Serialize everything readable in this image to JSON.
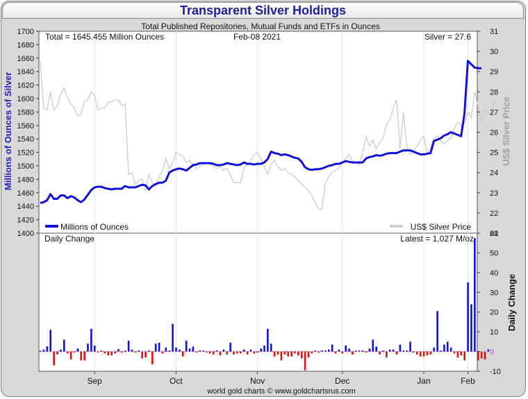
{
  "title": "Transparent Silver Holdings",
  "subtitle": "Total Published Repositories, Mutual Funds and ETFs in Ounces",
  "total_label": "Total = 1645.455 Million Ounces",
  "date_label": "Feb-08  2021",
  "silver_label": "Silver = 27.6",
  "daily_label": "Daily Change",
  "latest_label": "Latest = 1.027 M/oz",
  "credit": "world gold charts © www.goldchartsrus.com",
  "colors": {
    "holdings": "#1010dd",
    "price": "#c8c8c8",
    "up": "#1010dd",
    "down": "#dd1010"
  },
  "chart_data": [
    {
      "type": "line",
      "ylabel": "Millions of Ounces of Silver",
      "y2label": "US$ Silver Price",
      "ylim": [
        1400,
        1700
      ],
      "y2lim": [
        21,
        31
      ],
      "yticks": [
        1400,
        1420,
        1440,
        1460,
        1480,
        1500,
        1520,
        1540,
        1560,
        1580,
        1600,
        1620,
        1640,
        1660,
        1680,
        1700
      ],
      "y2ticks": [
        21,
        22,
        23,
        24,
        25,
        26,
        27,
        28,
        29,
        30,
        31
      ],
      "xticks": [
        "Sep",
        "Oct",
        "Nov",
        "Dec",
        "Jan",
        "Feb"
      ],
      "grid": false,
      "legend_position": "bottom",
      "series": [
        {
          "name": "Millions of Ounces",
          "axis": "left",
          "values": [
            1445,
            1446,
            1449,
            1458,
            1451,
            1451,
            1456,
            1456,
            1452,
            1455,
            1453,
            1449,
            1446,
            1450,
            1457,
            1464,
            1468,
            1469,
            1469,
            1467,
            1466,
            1465,
            1466,
            1466,
            1466,
            1470,
            1468,
            1468,
            1468,
            1470,
            1472,
            1471,
            1465,
            1470,
            1473,
            1475,
            1475,
            1478,
            1490,
            1493,
            1495,
            1496,
            1495,
            1493,
            1497,
            1501,
            1502,
            1504,
            1504,
            1504,
            1504,
            1503,
            1501,
            1501,
            1502,
            1504,
            1503,
            1502,
            1501,
            1502,
            1505,
            1503,
            1503,
            1502,
            1503,
            1503,
            1505,
            1510,
            1521,
            1519,
            1518,
            1516,
            1517,
            1516,
            1514,
            1512,
            1511,
            1506,
            1498,
            1495,
            1494,
            1495,
            1495,
            1496,
            1498,
            1500,
            1501,
            1503,
            1503,
            1505,
            1507,
            1506,
            1505,
            1505,
            1505,
            1505,
            1511,
            1513,
            1514,
            1516,
            1515,
            1516,
            1518,
            1519,
            1519,
            1519,
            1521,
            1523,
            1523,
            1523,
            1521,
            1519,
            1517,
            1517,
            1518,
            1519,
            1537,
            1539,
            1541,
            1545,
            1547,
            1550,
            1548,
            1546,
            1544,
            1578,
            1656,
            1651,
            1646,
            1645,
            1645
          ],
          "values_note": ""
        },
        {
          "name": "US$ Silver Price",
          "axis": "right",
          "values": [
            29.5,
            27.2,
            27.1,
            28.0,
            27.1,
            27.3,
            27.9,
            28.2,
            27.7,
            27.4,
            27.2,
            26.8,
            26.9,
            27.5,
            27.6,
            28.0,
            27.8,
            27.1,
            27.2,
            27.2,
            27.5,
            27.5,
            27.6,
            27.6,
            27.3,
            27.4,
            23.9,
            24.0,
            23.4,
            23.6,
            23.7,
            23.1,
            23.9,
            23.5,
            23.3,
            23.8,
            24.1,
            24.7,
            24.2,
            24.5,
            25.0,
            24.9,
            24.8,
            24.5,
            24.6,
            24.4,
            24.2,
            24.3,
            24.4,
            24.5,
            24.4,
            24.3,
            24.2,
            24.3,
            24.1,
            24.2,
            23.9,
            23.5,
            23.5,
            23.5,
            24.2,
            24.4,
            24.6,
            24.9,
            25.0,
            24.7,
            24.3,
            23.9,
            24.4,
            24.6,
            24.3,
            24.1,
            24.2,
            24.0,
            23.9,
            23.8,
            23.6,
            23.4,
            23.3,
            23.1,
            22.9,
            22.5,
            22.2,
            22.2,
            23.5,
            23.8,
            24.0,
            24.1,
            24.2,
            24.5,
            24.7,
            24.9,
            24.6,
            24.5,
            24.4,
            25.0,
            25.8,
            25.3,
            25.6,
            25.2,
            25.5,
            25.7,
            26.4,
            26.6,
            27.2,
            27.6,
            25.2,
            27.0,
            25.3,
            24.9,
            25.1,
            25.3,
            25.6,
            25.8,
            25.0,
            25.2,
            25.7,
            25.8,
            25.6,
            25.4,
            25.6,
            25.7,
            26.2,
            26.5,
            26.3,
            26.4,
            27.0,
            26.7,
            28.0,
            27.3,
            26.6,
            27.1,
            26.9,
            27.0,
            27.6
          ]
        }
      ]
    },
    {
      "type": "bar",
      "title": "Daily Change",
      "ylabel": "Daily Change",
      "ylim": [
        -10,
        60
      ],
      "yticks": [
        -10,
        0,
        10,
        20,
        30,
        40,
        50,
        60
      ],
      "values": [
        0.4,
        1.0,
        2.6,
        11.0,
        -7.0,
        -1.5,
        1.0,
        6.0,
        -1.0,
        -4.0,
        -0.5,
        1.5,
        -4.5,
        -4.5,
        4.0,
        11.5,
        3.0,
        -0.5,
        0.5,
        -1.0,
        -2.0,
        -2.0,
        -1.0,
        1.2,
        -0.5,
        0.5,
        5.5,
        1.0,
        -0.5,
        0.5,
        -3.5,
        -3.0,
        0.5,
        -6.5,
        4.0,
        4.5,
        -1.0,
        2.0,
        0.5,
        14.0,
        2.0,
        1.0,
        -2.5,
        5.5,
        1.5,
        2.5,
        -0.5,
        0.5,
        0.5,
        -0.5,
        -1.0,
        -1.5,
        0.5,
        -2.0,
        1.0,
        -1.5,
        4.5,
        -1.5,
        -1.0,
        -1.0,
        1.0,
        -1.5,
        1.0,
        -1.0,
        -0.5,
        1.5,
        3.0,
        11.5,
        4.0,
        -2.5,
        -1.5,
        -4.5,
        -1.5,
        -2.5,
        -2.5,
        -1.0,
        -2.0,
        -3.5,
        -9.5,
        -3.0,
        -1.0,
        0.5,
        -0.5,
        0.5,
        0.5,
        1.0,
        3.5,
        -1.0,
        1.0,
        -1.0,
        3.0,
        1.5,
        -1.5,
        0.5,
        0.5,
        0.5,
        -0.5,
        1.5,
        6.0,
        2.5,
        -1.5,
        0.5,
        -3.0,
        1.0,
        1.0,
        -1.5,
        3.5,
        0.5,
        0.5,
        5.0,
        -0.5,
        -1.5,
        -2.5,
        -2.5,
        -2.0,
        -1.5,
        2.0,
        20.5,
        0.5,
        3.5,
        5.0,
        2.0,
        -1.0,
        -3.0,
        -2.0,
        -4.5,
        35.0,
        24.0,
        57.5,
        -4.5,
        -3.5,
        -4.0,
        1.0
      ]
    }
  ]
}
